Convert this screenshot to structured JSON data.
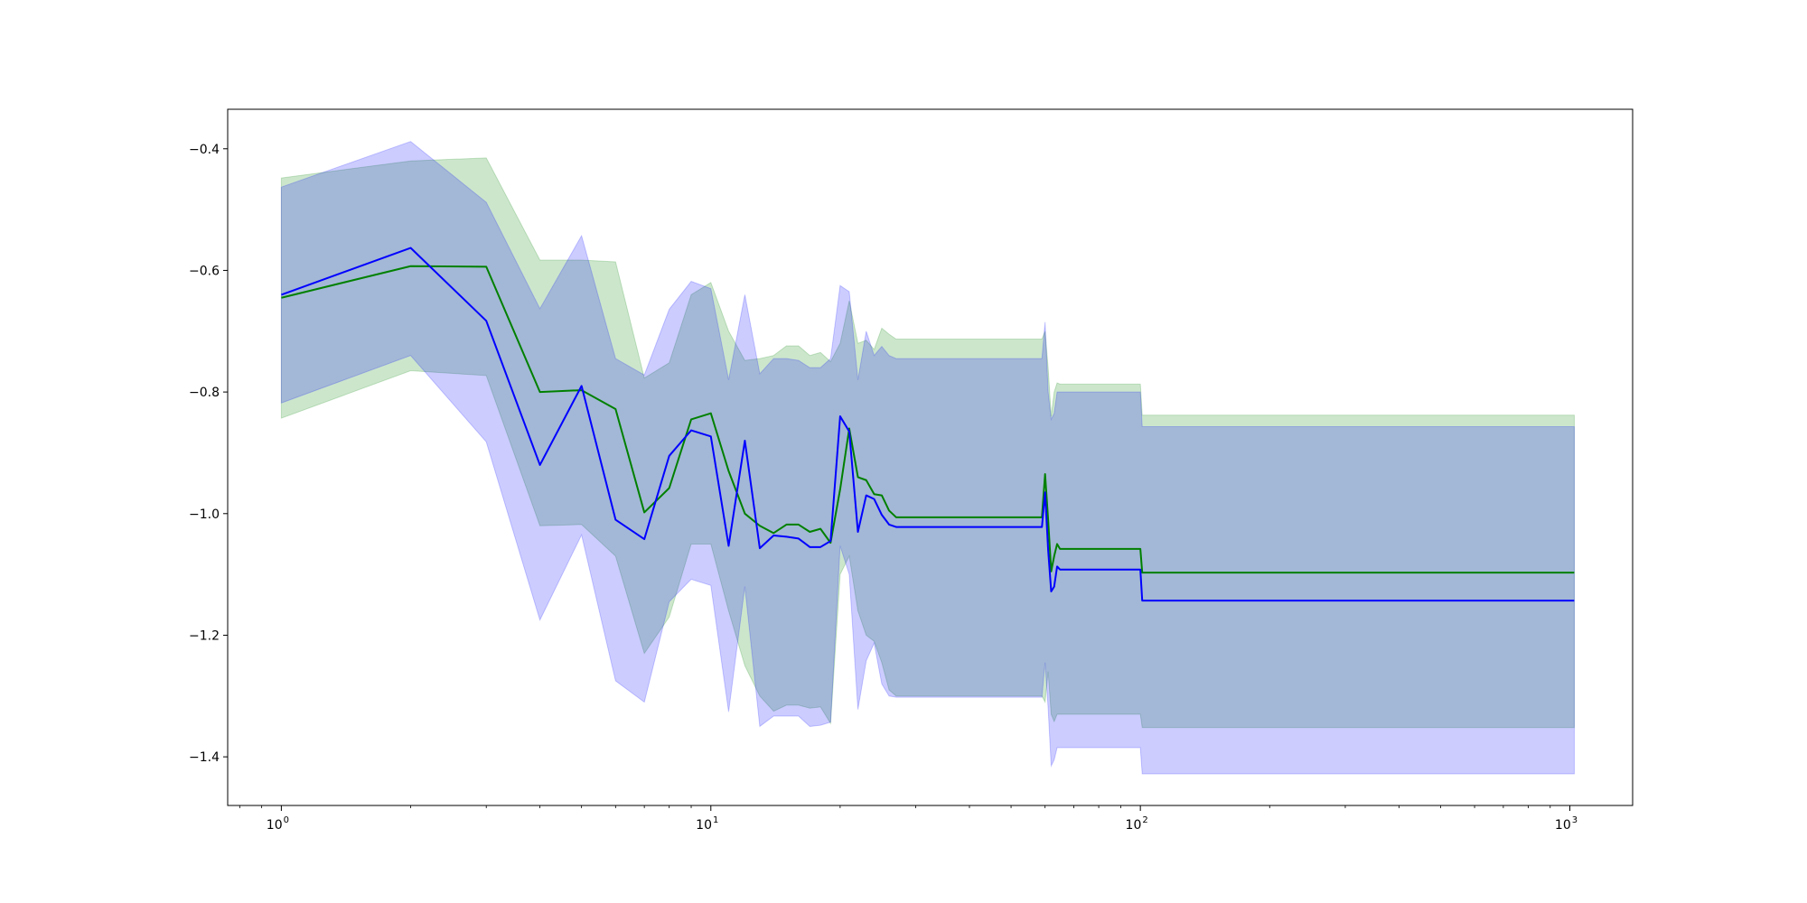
{
  "chart_data": {
    "type": "line",
    "title": "",
    "xlabel": "",
    "ylabel": "",
    "xscale": "log",
    "xlim": [
      0.75,
      1400
    ],
    "ylim": [
      -1.48,
      -0.335
    ],
    "grid": false,
    "legend": "none",
    "x_ticks": [
      {
        "value": 1,
        "base": "10",
        "exp": "0"
      },
      {
        "value": 10,
        "base": "10",
        "exp": "1"
      },
      {
        "value": 100,
        "base": "10",
        "exp": "2"
      },
      {
        "value": 1000,
        "base": "10",
        "exp": "3"
      }
    ],
    "y_ticks": [
      {
        "value": -0.4,
        "label": "−0.4"
      },
      {
        "value": -0.6,
        "label": "−0.6"
      },
      {
        "value": -0.8,
        "label": "−0.8"
      },
      {
        "value": -1.0,
        "label": "−1.0"
      },
      {
        "value": -1.2,
        "label": "−1.2"
      },
      {
        "value": -1.4,
        "label": "−1.4"
      }
    ],
    "series": [
      {
        "color": "#008000",
        "band_color": "#008000",
        "band_opacity": 0.2,
        "x": [
          1,
          2,
          3,
          4,
          5,
          6,
          7,
          8,
          9,
          10,
          11,
          12,
          13,
          14,
          15,
          16,
          17,
          18,
          19,
          20,
          21,
          22,
          23,
          24,
          25,
          26,
          27,
          58,
          59,
          60,
          61,
          62,
          63,
          64,
          65,
          66,
          100,
          101,
          1024
        ],
        "y": [
          -0.645,
          -0.593,
          -0.594,
          -0.8,
          -0.797,
          -0.828,
          -0.998,
          -0.958,
          -0.845,
          -0.835,
          -0.93,
          -1.0,
          -1.02,
          -1.032,
          -1.018,
          -1.018,
          -1.03,
          -1.025,
          -1.048,
          -0.96,
          -0.86,
          -0.94,
          -0.945,
          -0.968,
          -0.97,
          -0.995,
          -1.006,
          -1.006,
          -1.006,
          -0.935,
          -1.01,
          -1.095,
          -1.07,
          -1.05,
          -1.058,
          -1.058,
          -1.058,
          -1.097,
          -1.097
        ],
        "upper": [
          -0.448,
          -0.42,
          -0.415,
          -0.583,
          -0.583,
          -0.586,
          -0.777,
          -0.752,
          -0.64,
          -0.62,
          -0.7,
          -0.748,
          -0.745,
          -0.74,
          -0.724,
          -0.724,
          -0.74,
          -0.735,
          -0.75,
          -0.72,
          -0.65,
          -0.72,
          -0.715,
          -0.73,
          -0.695,
          -0.705,
          -0.713,
          -0.713,
          -0.713,
          -0.7,
          -0.76,
          -0.84,
          -0.8,
          -0.785,
          -0.787,
          -0.787,
          -0.787,
          -0.838,
          -0.838
        ],
        "lower": [
          -0.843,
          -0.765,
          -0.773,
          -1.02,
          -1.018,
          -1.07,
          -1.23,
          -1.17,
          -1.05,
          -1.05,
          -1.16,
          -1.25,
          -1.3,
          -1.325,
          -1.315,
          -1.315,
          -1.32,
          -1.318,
          -1.345,
          -1.1,
          -1.07,
          -1.16,
          -1.2,
          -1.21,
          -1.245,
          -1.29,
          -1.3,
          -1.3,
          -1.3,
          -1.31,
          -1.26,
          -1.33,
          -1.342,
          -1.33,
          -1.33,
          -1.33,
          -1.33,
          -1.352,
          -1.352
        ]
      },
      {
        "color": "#0000ff",
        "band_color": "#0000ff",
        "band_opacity": 0.2,
        "x": [
          1,
          2,
          3,
          4,
          5,
          6,
          7,
          8,
          9,
          10,
          11,
          12,
          13,
          14,
          15,
          16,
          17,
          18,
          19,
          20,
          21,
          22,
          23,
          24,
          25,
          26,
          27,
          58,
          59,
          60,
          61,
          62,
          63,
          64,
          65,
          66,
          100,
          101,
          1024
        ],
        "y": [
          -0.64,
          -0.563,
          -0.683,
          -0.92,
          -0.79,
          -1.01,
          -1.042,
          -0.905,
          -0.863,
          -0.873,
          -1.053,
          -0.88,
          -1.057,
          -1.036,
          -1.038,
          -1.041,
          -1.055,
          -1.055,
          -1.045,
          -0.84,
          -0.865,
          -1.03,
          -0.97,
          -0.976,
          -1.002,
          -1.018,
          -1.022,
          -1.022,
          -1.022,
          -0.965,
          -1.06,
          -1.128,
          -1.12,
          -1.087,
          -1.092,
          -1.092,
          -1.092,
          -1.143,
          -1.143
        ],
        "upper": [
          -0.463,
          -0.388,
          -0.488,
          -0.663,
          -0.543,
          -0.745,
          -0.772,
          -0.664,
          -0.618,
          -0.63,
          -0.78,
          -0.64,
          -0.77,
          -0.745,
          -0.745,
          -0.748,
          -0.76,
          -0.76,
          -0.745,
          -0.625,
          -0.635,
          -0.78,
          -0.7,
          -0.74,
          -0.725,
          -0.74,
          -0.745,
          -0.745,
          -0.745,
          -0.685,
          -0.8,
          -0.845,
          -0.835,
          -0.8,
          -0.8,
          -0.8,
          -0.8,
          -0.857,
          -0.857
        ],
        "lower": [
          -0.818,
          -0.74,
          -0.882,
          -1.175,
          -1.035,
          -1.275,
          -1.31,
          -1.145,
          -1.108,
          -1.118,
          -1.326,
          -1.12,
          -1.35,
          -1.333,
          -1.333,
          -1.333,
          -1.35,
          -1.348,
          -1.343,
          -1.053,
          -1.1,
          -1.322,
          -1.242,
          -1.213,
          -1.28,
          -1.3,
          -1.302,
          -1.302,
          -1.302,
          -1.245,
          -1.32,
          -1.415,
          -1.405,
          -1.385,
          -1.385,
          -1.385,
          -1.385,
          -1.428,
          -1.428
        ]
      }
    ]
  }
}
